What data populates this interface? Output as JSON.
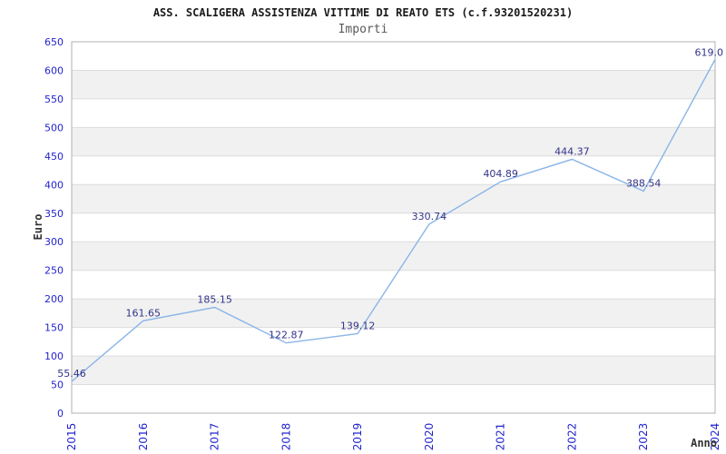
{
  "header": {
    "title": "ASS. SCALIGERA ASSISTENZA VITTIME DI REATO ETS (c.f.93201520231)",
    "subtitle": "Importi"
  },
  "chart_data": {
    "type": "line",
    "title": "ASS. SCALIGERA ASSISTENZA VITTIME DI REATO ETS (c.f.93201520231)",
    "subtitle": "Importi",
    "xlabel": "Anno",
    "ylabel": "Euro",
    "categories": [
      "2015",
      "2016",
      "2017",
      "2018",
      "2019",
      "2020",
      "2021",
      "2022",
      "2023",
      "2024"
    ],
    "series": [
      {
        "name": "Importi",
        "values": [
          55.46,
          161.65,
          185.15,
          122.87,
          139.12,
          330.74,
          404.89,
          444.37,
          388.54,
          619.0
        ]
      }
    ],
    "point_labels": [
      "55.46",
      "161.65",
      "185.15",
      "122.87",
      "139.12",
      "330.74",
      "404.89",
      "444.37",
      "388.54",
      "619.0"
    ],
    "ylim": [
      0,
      650
    ],
    "yticks": [
      0,
      50,
      100,
      150,
      200,
      250,
      300,
      350,
      400,
      450,
      500,
      550,
      600,
      650
    ],
    "grid": "alternating-horizontal-bands",
    "legend_position": "none",
    "markers": "none"
  },
  "colors": {
    "line": "#8ab5e8",
    "tick_label": "#2323ce",
    "point_label": "#333388",
    "band": "#f1f1f1",
    "grid_line": "#dcdcdc",
    "plot_border": "#b0b0b0",
    "title": "#1a1a1a",
    "subtitle": "#595959",
    "axis_label": "#333333",
    "background": "#ffffff"
  }
}
